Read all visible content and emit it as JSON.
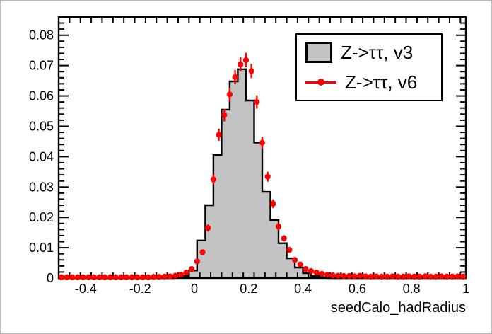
{
  "chart_data": {
    "type": "histogram",
    "title": "",
    "xlabel": "seedCalo_hadRadius",
    "ylabel": "",
    "x_range": [
      -0.5,
      1.0
    ],
    "y_range": [
      0,
      0.086
    ],
    "grid": false,
    "x_ticks": {
      "values": [
        -0.4,
        -0.2,
        0,
        0.2,
        0.4,
        0.6,
        0.8,
        1
      ],
      "labels": [
        "-0.4",
        "-0.2",
        "0",
        "0.2",
        "0.4",
        "0.6",
        "0.8",
        "1"
      ],
      "minor_step": 0.04
    },
    "y_ticks": {
      "values": [
        0,
        0.01,
        0.02,
        0.03,
        0.04,
        0.05,
        0.06,
        0.07,
        0.08
      ],
      "labels": [
        "0",
        "0.01",
        "0.02",
        "0.03",
        "0.04",
        "0.05",
        "0.06",
        "0.07",
        "0.08"
      ],
      "minor_step": 0.002
    },
    "series": [
      {
        "name": "Z->ττ, v3",
        "style": "filled-step-histogram",
        "fill_color": "#c3c3c3",
        "line_color": "#000000",
        "bin_start": -0.5,
        "bin_width": 0.03,
        "values": [
          0,
          0,
          0,
          0,
          0,
          0,
          0,
          0,
          0,
          0,
          0,
          0,
          0,
          0,
          0.0002,
          0.0007,
          0.0025,
          0.0124,
          0.024,
          0.0405,
          0.0555,
          0.0648,
          0.0688,
          0.0585,
          0.0446,
          0.0284,
          0.0191,
          0.0115,
          0.0065,
          0.0035,
          0.0016,
          0.0007,
          0.0003,
          0,
          0,
          0,
          0,
          0,
          0,
          0,
          0,
          0,
          0,
          0,
          0,
          0,
          0,
          0,
          0,
          0
        ]
      },
      {
        "name": "Z->ττ, v6",
        "style": "points-with-error-bars",
        "color": "#ff0000",
        "bin_start": -0.5,
        "bin_width": 0.02,
        "values": [
          0.0003,
          0.0003,
          0.0003,
          0.0003,
          0.0003,
          0.0003,
          0.0003,
          0.0003,
          0.0003,
          0.0003,
          0.0003,
          0.0003,
          0.0003,
          0.0003,
          0.0003,
          0.0003,
          0.0003,
          0.0004,
          0.0004,
          0.0005,
          0.0006,
          0.0008,
          0.0012,
          0.0018,
          0.003,
          0.0055,
          0.0085,
          0.0165,
          0.0325,
          0.0472,
          0.0537,
          0.0605,
          0.0662,
          0.0704,
          0.0718,
          0.0682,
          0.058,
          0.0446,
          0.0334,
          0.0245,
          0.017,
          0.0131,
          0.0093,
          0.006,
          0.0045,
          0.003,
          0.0023,
          0.0018,
          0.0014,
          0.0011,
          0.0009,
          0.0008,
          0.0007,
          0.0007,
          0.0006,
          0.0008,
          0.0006,
          0.0005,
          0.0006,
          0.0005,
          0.0005,
          0.0006,
          0.0005,
          0.0005,
          0.0006,
          0.0005,
          0.0005,
          0.0006,
          0.0005,
          0.0005,
          0.0006,
          0.0005,
          0.0005,
          0.0006,
          0.0005
        ]
      }
    ],
    "legend": {
      "position": "top-right",
      "entries": [
        {
          "label": "Z->ττ, v3",
          "swatch": "gray-filled-box"
        },
        {
          "label": "Z->ττ, v6",
          "swatch": "red-line-marker"
        }
      ]
    }
  }
}
